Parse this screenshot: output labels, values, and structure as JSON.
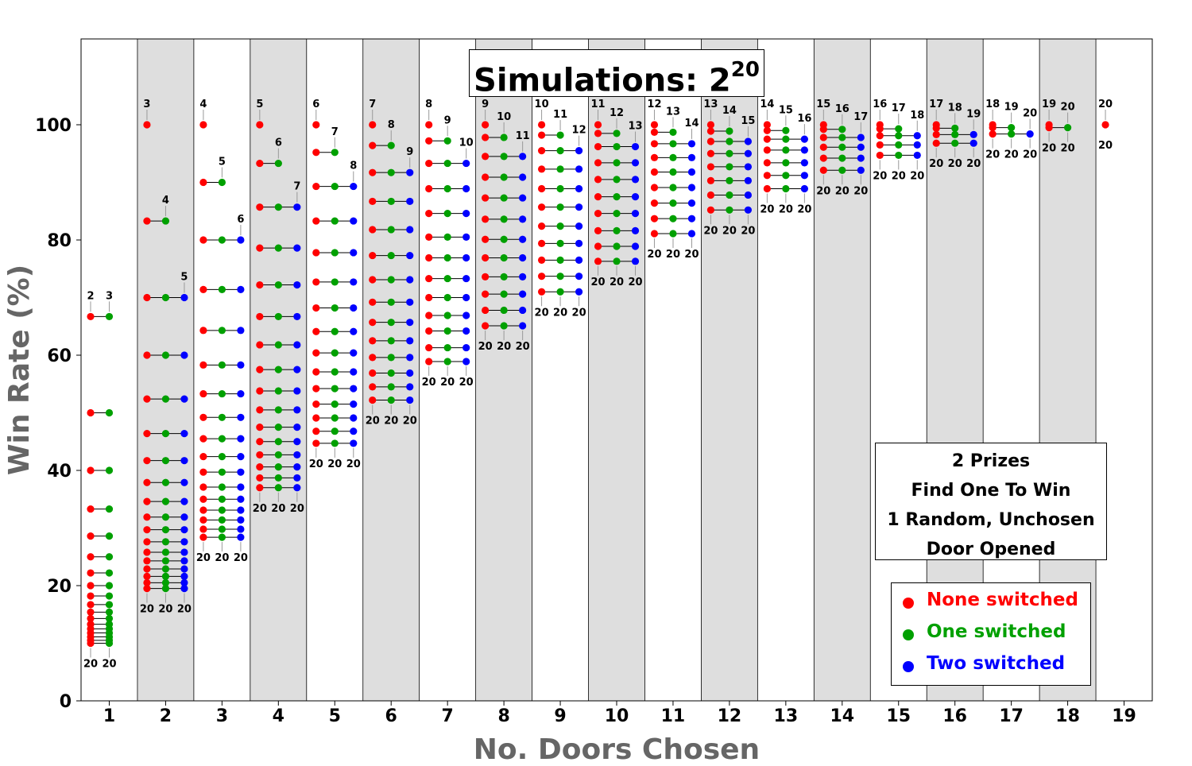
{
  "title": {
    "text": "Simulations: 2",
    "exponent": "20"
  },
  "info_box": [
    "2 Prizes",
    "Find One To Win",
    "1 Random, Unchosen",
    "Door Opened"
  ],
  "legend": [
    {
      "label": "None switched",
      "color": "#ff0000"
    },
    {
      "label": "One switched",
      "color": "#00a000"
    },
    {
      "label": "Two switched",
      "color": "#0000ff"
    }
  ],
  "chart_data": {
    "type": "scatter",
    "title": "Simulations: 2^20",
    "xlabel": "No. Doors Chosen",
    "ylabel": "Win Rate (%)",
    "xlim": [
      1,
      19
    ],
    "ylim": [
      0,
      115
    ],
    "yticks": [
      0,
      20,
      40,
      60,
      80,
      100
    ],
    "xticks": [
      1,
      2,
      3,
      4,
      5,
      6,
      7,
      8,
      9,
      10,
      11,
      12,
      13,
      14,
      15,
      16,
      17,
      18,
      19
    ],
    "band_shading": "alternating grey columns for even door counts",
    "series_colors": {
      "none": "#ff0000",
      "one": "#00a000",
      "two": "#0000ff"
    },
    "groups": [
      {
        "doors_chosen": 1,
        "top_labels": [
          "2",
          "3"
        ],
        "bottom_labels": [
          "20",
          "20"
        ],
        "none": [
          66.7,
          50,
          40,
          33.3,
          28.6,
          25,
          22.2,
          20,
          18.2,
          16.7,
          15.4,
          14.3,
          13.3,
          12.5,
          11.8,
          11.1,
          10.5,
          10
        ],
        "one": [
          66.7,
          50,
          40,
          33.3,
          28.6,
          25,
          22.2,
          20,
          18.2,
          16.7,
          15.4,
          14.3,
          13.3,
          12.5,
          11.8,
          11.1,
          10.5,
          10
        ]
      },
      {
        "doors_chosen": 2,
        "top_labels": [
          "3",
          "4",
          "5"
        ],
        "bottom_labels": [
          "20",
          "20",
          "20"
        ],
        "none": [
          100,
          83.3,
          70,
          60,
          52.4,
          46.4,
          41.7,
          37.9,
          34.6,
          31.9,
          29.7,
          27.6,
          25.8,
          24.3,
          22.9,
          21.6,
          20.5,
          19.5
        ],
        "one": [
          83.3,
          70,
          60,
          52.4,
          46.4,
          41.7,
          37.9,
          34.6,
          31.9,
          29.7,
          27.6,
          25.8,
          24.3,
          22.9,
          21.6,
          20.5,
          19.5
        ],
        "two": [
          70,
          60,
          52.4,
          46.4,
          41.7,
          37.9,
          34.6,
          31.9,
          29.7,
          27.6,
          25.8,
          24.3,
          22.9,
          21.6,
          20.5,
          19.5
        ]
      },
      {
        "doors_chosen": 3,
        "top_labels": [
          "4",
          "5",
          "6"
        ],
        "bottom_labels": [
          "20",
          "20",
          "20"
        ],
        "none": [
          100,
          90,
          80,
          71.4,
          64.3,
          58.3,
          53.3,
          49.2,
          45.5,
          42.4,
          39.7,
          37.1,
          35,
          33.1,
          31.4,
          29.8,
          28.4
        ],
        "one": [
          90,
          80,
          71.4,
          64.3,
          58.3,
          53.3,
          49.2,
          45.5,
          42.4,
          39.7,
          37.1,
          35,
          33.1,
          31.4,
          29.8,
          28.4
        ],
        "two": [
          80,
          71.4,
          64.3,
          58.3,
          53.3,
          49.2,
          45.5,
          42.4,
          39.7,
          37.1,
          35,
          33.1,
          31.4,
          29.8,
          28.4
        ]
      },
      {
        "doors_chosen": 4,
        "top_labels": [
          "5",
          "6",
          "7"
        ],
        "bottom_labels": [
          "20",
          "20",
          "20"
        ],
        "none": [
          100,
          93.3,
          85.7,
          78.6,
          72.2,
          66.7,
          61.8,
          57.5,
          53.8,
          50.5,
          47.5,
          45,
          42.7,
          40.6,
          38.7,
          37
        ],
        "one": [
          93.3,
          85.7,
          78.6,
          72.2,
          66.7,
          61.8,
          57.5,
          53.8,
          50.5,
          47.5,
          45,
          42.7,
          40.6,
          38.7,
          37
        ],
        "two": [
          85.7,
          78.6,
          72.2,
          66.7,
          61.8,
          57.5,
          53.8,
          50.5,
          47.5,
          45,
          42.7,
          40.6,
          38.7,
          37
        ]
      },
      {
        "doors_chosen": 5,
        "top_labels": [
          "6",
          "7",
          "8"
        ],
        "bottom_labels": [
          "20",
          "20",
          "20"
        ],
        "none": [
          100,
          95.2,
          89.3,
          83.3,
          77.8,
          72.7,
          68.2,
          64.1,
          60.4,
          57.1,
          54.2,
          51.5,
          49.1,
          46.8,
          44.7
        ],
        "one": [
          95.2,
          89.3,
          83.3,
          77.8,
          72.7,
          68.2,
          64.1,
          60.4,
          57.1,
          54.2,
          51.5,
          49.1,
          46.8,
          44.7
        ],
        "two": [
          89.3,
          83.3,
          77.8,
          72.7,
          68.2,
          64.1,
          60.4,
          57.1,
          54.2,
          51.5,
          49.1,
          46.8,
          44.7
        ]
      },
      {
        "doors_chosen": 6,
        "top_labels": [
          "7",
          "8",
          "9"
        ],
        "bottom_labels": [
          "20",
          "20",
          "20"
        ],
        "none": [
          100,
          96.4,
          91.7,
          86.7,
          81.8,
          77.3,
          73.1,
          69.2,
          65.7,
          62.5,
          59.6,
          56.9,
          54.5,
          52.2
        ],
        "one": [
          96.4,
          91.7,
          86.7,
          81.8,
          77.3,
          73.1,
          69.2,
          65.7,
          62.5,
          59.6,
          56.9,
          54.5,
          52.2
        ],
        "two": [
          91.7,
          86.7,
          81.8,
          77.3,
          73.1,
          69.2,
          65.7,
          62.5,
          59.6,
          56.9,
          54.5,
          52.2
        ]
      },
      {
        "doors_chosen": 7,
        "top_labels": [
          "8",
          "9",
          "10"
        ],
        "bottom_labels": [
          "20",
          "20",
          "20"
        ],
        "none": [
          100,
          97.2,
          93.3,
          88.9,
          84.6,
          80.5,
          76.9,
          73.3,
          70,
          66.9,
          64.2,
          61.3,
          58.9
        ],
        "one": [
          97.2,
          93.3,
          88.9,
          84.6,
          80.5,
          76.9,
          73.3,
          70,
          66.9,
          64.2,
          61.3,
          58.9
        ],
        "two": [
          93.3,
          88.9,
          84.6,
          80.5,
          76.9,
          73.3,
          70,
          66.9,
          64.2,
          61.3,
          58.9
        ]
      },
      {
        "doors_chosen": 8,
        "top_labels": [
          "9",
          "10",
          "11"
        ],
        "bottom_labels": [
          "20",
          "20",
          "20"
        ],
        "none": [
          100,
          97.8,
          94.5,
          90.9,
          87.3,
          83.6,
          80.1,
          76.9,
          73.6,
          70.6,
          67.8,
          65.1
        ],
        "one": [
          97.8,
          94.5,
          90.9,
          87.3,
          83.6,
          80.1,
          76.9,
          73.6,
          70.6,
          67.8,
          65.1
        ],
        "two": [
          94.5,
          90.9,
          87.3,
          83.6,
          80.1,
          76.9,
          73.6,
          70.6,
          67.8,
          65.1
        ]
      },
      {
        "doors_chosen": 9,
        "top_labels": [
          "10",
          "11",
          "12"
        ],
        "bottom_labels": [
          "20",
          "20",
          "20"
        ],
        "none": [
          100,
          98.2,
          95.5,
          92.3,
          88.9,
          85.7,
          82.4,
          79.4,
          76.5,
          73.7,
          71
        ],
        "one": [
          98.2,
          95.5,
          92.3,
          88.9,
          85.7,
          82.4,
          79.4,
          76.5,
          73.7,
          71
        ],
        "two": [
          95.5,
          92.3,
          88.9,
          85.7,
          82.4,
          79.4,
          76.5,
          73.7,
          71
        ]
      },
      {
        "doors_chosen": 10,
        "top_labels": [
          "11",
          "12",
          "13"
        ],
        "bottom_labels": [
          "20",
          "20",
          "20"
        ],
        "none": [
          100,
          98.5,
          96.2,
          93.4,
          90.5,
          87.5,
          84.6,
          81.6,
          78.9,
          76.3
        ],
        "one": [
          98.5,
          96.2,
          93.4,
          90.5,
          87.5,
          84.6,
          81.6,
          78.9,
          76.3
        ],
        "two": [
          96.2,
          93.4,
          90.5,
          87.5,
          84.6,
          81.6,
          78.9,
          76.3
        ]
      },
      {
        "doors_chosen": 11,
        "top_labels": [
          "12",
          "13",
          "14"
        ],
        "bottom_labels": [
          "20",
          "20",
          "20"
        ],
        "none": [
          100,
          98.7,
          96.7,
          94.3,
          91.8,
          89.1,
          86.4,
          83.7,
          81.1
        ],
        "one": [
          98.7,
          96.7,
          94.3,
          91.8,
          89.1,
          86.4,
          83.7,
          81.1
        ],
        "two": [
          96.7,
          94.3,
          91.8,
          89.1,
          86.4,
          83.7,
          81.1
        ]
      },
      {
        "doors_chosen": 12,
        "top_labels": [
          "13",
          "14",
          "15"
        ],
        "bottom_labels": [
          "20",
          "20",
          "20"
        ],
        "none": [
          100,
          98.9,
          97.1,
          95,
          92.7,
          90.3,
          87.8,
          85.2
        ],
        "one": [
          98.9,
          97.1,
          95,
          92.7,
          90.3,
          87.8,
          85.2
        ],
        "two": [
          97.1,
          95,
          92.7,
          90.3,
          87.8,
          85.2
        ]
      },
      {
        "doors_chosen": 13,
        "top_labels": [
          "14",
          "15",
          "16"
        ],
        "bottom_labels": [
          "20",
          "20",
          "20"
        ],
        "none": [
          100,
          99,
          97.5,
          95.6,
          93.4,
          91.2,
          88.9
        ],
        "one": [
          99,
          97.5,
          95.6,
          93.4,
          91.2,
          88.9
        ],
        "two": [
          97.5,
          95.6,
          93.4,
          91.2,
          88.9
        ]
      },
      {
        "doors_chosen": 14,
        "top_labels": [
          "15",
          "16",
          "17"
        ],
        "bottom_labels": [
          "20",
          "20",
          "20"
        ],
        "none": [
          100,
          99.2,
          97.8,
          96.1,
          94.2,
          92.1
        ],
        "one": [
          99.2,
          97.8,
          96.1,
          94.2,
          92.1
        ],
        "two": [
          97.8,
          96.1,
          94.2,
          92.1
        ]
      },
      {
        "doors_chosen": 15,
        "top_labels": [
          "16",
          "17",
          "18"
        ],
        "bottom_labels": [
          "20",
          "20",
          "20"
        ],
        "none": [
          100,
          99.3,
          98.1,
          96.5,
          94.7
        ],
        "one": [
          99.3,
          98.1,
          96.5,
          94.7
        ],
        "two": [
          98.1,
          96.5,
          94.7
        ]
      },
      {
        "doors_chosen": 16,
        "top_labels": [
          "17",
          "18",
          "19"
        ],
        "bottom_labels": [
          "20",
          "20",
          "20"
        ],
        "none": [
          100,
          99.4,
          98.3,
          96.8
        ],
        "one": [
          99.4,
          98.3,
          96.8
        ],
        "two": [
          98.3,
          96.8
        ]
      },
      {
        "doors_chosen": 17,
        "top_labels": [
          "18",
          "19",
          "20"
        ],
        "bottom_labels": [
          "20",
          "20",
          "20"
        ],
        "none": [
          100,
          99.5,
          98.4
        ],
        "one": [
          99.5,
          98.4
        ],
        "two": [
          98.4
        ]
      },
      {
        "doors_chosen": 18,
        "top_labels": [
          "19",
          "20"
        ],
        "bottom_labels": [
          "20",
          "20"
        ],
        "none": [
          100,
          99.5
        ],
        "one": [
          99.5
        ]
      },
      {
        "doors_chosen": 19,
        "top_labels": [
          "20"
        ],
        "bottom_labels": [
          "20"
        ],
        "none": [
          100
        ]
      }
    ]
  }
}
